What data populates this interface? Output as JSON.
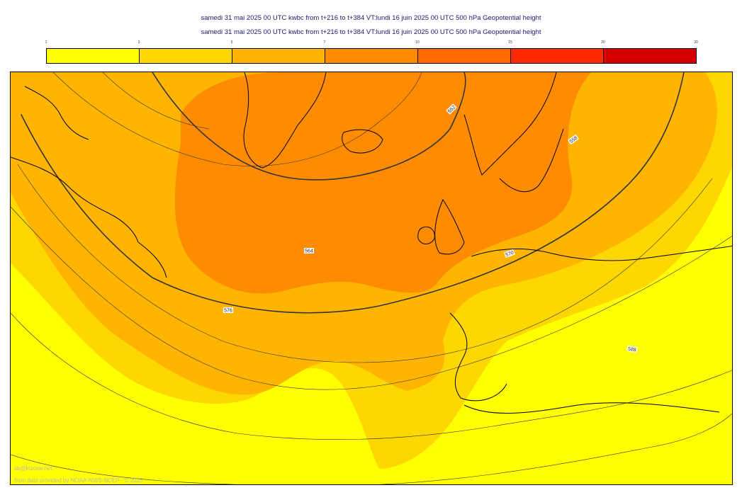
{
  "header": {
    "title_line1": "samedi 31 mai 2025 00 UTC kwbc from t+216 to t+384 VT:lundi 16 juin 2025 00 UTC 500 hPa  Geopotential height",
    "title_line2": "samedi 31 mai 2025 00 UTC kwbc from t+216 to t+384 VT:lundi 16 juin 2025 00 UTC 500 hPa  Geopotential height"
  },
  "legend": {
    "ticks": [
      "1",
      "3",
      "5",
      "7",
      "10",
      "15",
      "20",
      "30"
    ],
    "colors": [
      "#ffff00",
      "#ffd700",
      "#ffb400",
      "#ff8c00",
      "#ff6a00",
      "#ff2a00",
      "#d60000"
    ]
  },
  "map": {
    "contour_labels": [
      "552",
      "558",
      "564",
      "570",
      "576",
      "588"
    ],
    "colors": {
      "level1": "#ffff00",
      "level2": "#ffd700",
      "level3": "#ffb400",
      "level4": "#ff8c00",
      "coastline": "#000000",
      "contour": "#333333"
    }
  },
  "credits": {
    "site": "sb@lrizone.net",
    "source": "from data provided by NOAA-NWS-NCEP - © 2025"
  }
}
